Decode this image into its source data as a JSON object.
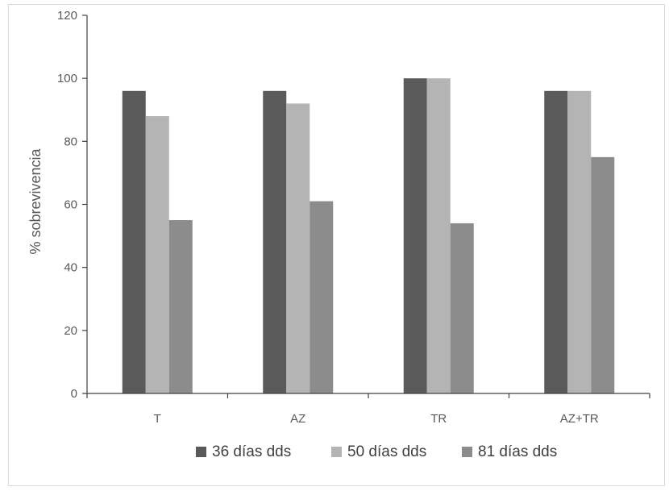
{
  "chart_data": {
    "type": "bar",
    "title": "",
    "xlabel": "",
    "ylabel": "% sobrevivencia",
    "categories": [
      "T",
      "AZ",
      "TR",
      "AZ+TR"
    ],
    "ylim": [
      0,
      120
    ],
    "yticks": [
      0,
      20,
      40,
      60,
      80,
      100,
      120
    ],
    "grid": false,
    "legend_position": "bottom",
    "series": [
      {
        "name": "36 días dds",
        "color": "#5a5a5a",
        "values": [
          96,
          96,
          100,
          96
        ]
      },
      {
        "name": "50 días dds",
        "color": "#b4b4b4",
        "values": [
          88,
          92,
          100,
          96
        ]
      },
      {
        "name": "81 días dds",
        "color": "#8c8c8c",
        "values": [
          55,
          61,
          54,
          75
        ]
      }
    ]
  }
}
